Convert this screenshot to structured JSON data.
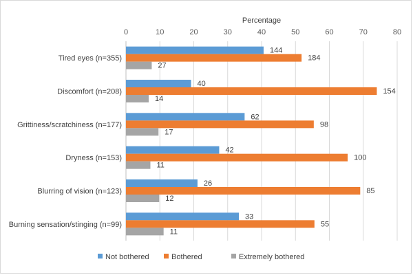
{
  "chart_data": {
    "type": "bar",
    "orientation": "horizontal",
    "title": "",
    "xlabel": "Percentage",
    "ylabel": "",
    "xlim": [
      0,
      80
    ],
    "ticks": [
      0,
      10,
      20,
      30,
      40,
      50,
      60,
      70,
      80
    ],
    "grid": true,
    "legend_position": "bottom",
    "categories": [
      "Tired eyes (n=355)",
      "Discomfort (n=208)",
      "Grittiness/scratchiness (n=177)",
      "Dryness (n=153)",
      "Blurring of vision (n=123)",
      "Burning sensation/stinging (n=99)"
    ],
    "series": [
      {
        "name": "Not bothered",
        "color": "#5b9bd5",
        "values": [
          40.6,
          19.2,
          35.0,
          27.5,
          21.1,
          33.3
        ],
        "labels": [
          "144",
          "40",
          "62",
          "42",
          "26",
          "33"
        ]
      },
      {
        "name": "Bothered",
        "color": "#ed7d31",
        "values": [
          51.8,
          74.0,
          55.4,
          65.4,
          69.1,
          55.6
        ],
        "labels": [
          "184",
          "154",
          "98",
          "100",
          "85",
          "55"
        ]
      },
      {
        "name": "Extremely bothered",
        "color": "#a5a5a5",
        "values": [
          7.6,
          6.7,
          9.6,
          7.2,
          9.8,
          11.1
        ],
        "labels": [
          "27",
          "14",
          "17",
          "11",
          "12",
          "11"
        ]
      }
    ]
  }
}
